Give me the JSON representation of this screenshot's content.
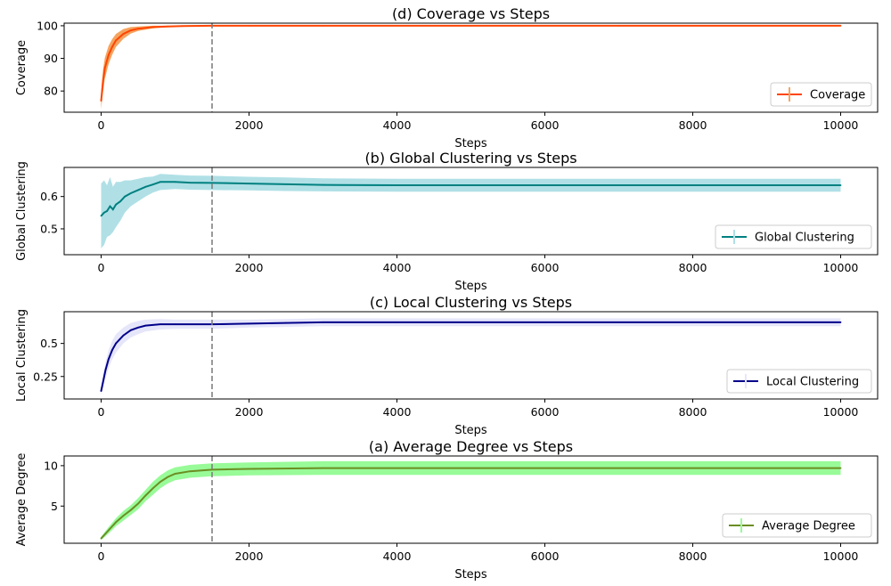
{
  "chart_data": [
    {
      "type": "line",
      "title": "(d) Coverage vs Steps",
      "xlabel": "Steps",
      "ylabel": "Coverage",
      "xlim": [
        -500,
        10500
      ],
      "ylim": [
        73.5,
        100.8
      ],
      "x_ticks": [
        0,
        2000,
        4000,
        6000,
        8000,
        10000
      ],
      "y_ticks": [
        80,
        90,
        100
      ],
      "vline_x": 1500,
      "legend_position": "lower right",
      "series": [
        {
          "name": "Coverage",
          "color": "#ff4500",
          "band_color": "#f4a460",
          "x": [
            0,
            25,
            50,
            100,
            150,
            200,
            300,
            400,
            500,
            700,
            900,
            1100,
            1500,
            2000,
            3000,
            5000,
            7000,
            10000
          ],
          "y": [
            77,
            83,
            87,
            91,
            93.5,
            95.5,
            97.5,
            98.6,
            99.1,
            99.6,
            99.8,
            99.9,
            100,
            100,
            100,
            100,
            100,
            100
          ],
          "err": [
            2.5,
            3.5,
            3.2,
            2.8,
            2.4,
            2,
            1.5,
            1,
            0.7,
            0.4,
            0.2,
            0.1,
            0.05,
            0.05,
            0.05,
            0.05,
            0.05,
            0.05
          ]
        }
      ]
    },
    {
      "type": "line",
      "title": "(b) Global Clustering vs Steps",
      "xlabel": "Steps",
      "ylabel": "Global Clustering",
      "xlim": [
        -500,
        10500
      ],
      "ylim": [
        0.42,
        0.69
      ],
      "x_ticks": [
        0,
        2000,
        4000,
        6000,
        8000,
        10000
      ],
      "y_ticks": [
        0.5,
        0.6
      ],
      "vline_x": 1500,
      "legend_position": "lower right",
      "series": [
        {
          "name": "Global Clustering",
          "color": "#008080",
          "band_color": "#b0e0e6",
          "x": [
            0,
            40,
            80,
            120,
            160,
            200,
            260,
            320,
            400,
            500,
            600,
            700,
            800,
            1000,
            1200,
            1500,
            2000,
            2500,
            3000,
            4000,
            6000,
            8000,
            10000
          ],
          "y": [
            0.54,
            0.55,
            0.555,
            0.57,
            0.56,
            0.575,
            0.585,
            0.6,
            0.61,
            0.62,
            0.63,
            0.637,
            0.645,
            0.645,
            0.643,
            0.642,
            0.64,
            0.638,
            0.636,
            0.635,
            0.635,
            0.635,
            0.635
          ],
          "err": [
            0.1,
            0.1,
            0.08,
            0.09,
            0.07,
            0.07,
            0.06,
            0.05,
            0.04,
            0.035,
            0.03,
            0.025,
            0.025,
            0.022,
            0.022,
            0.022,
            0.021,
            0.021,
            0.02,
            0.02,
            0.02,
            0.02,
            0.02
          ]
        }
      ]
    },
    {
      "type": "line",
      "title": "(c) Local Clustering vs Steps",
      "xlabel": "Steps",
      "ylabel": "Local Clustering",
      "xlim": [
        -500,
        10500
      ],
      "ylim": [
        0.08,
        0.74
      ],
      "x_ticks": [
        0,
        2000,
        4000,
        6000,
        8000,
        10000
      ],
      "y_ticks": [
        0.25,
        0.5
      ],
      "vline_x": 1500,
      "legend_position": "lower right",
      "series": [
        {
          "name": "Local Clustering",
          "color": "#00008b",
          "band_color": "#e6e6fa",
          "x": [
            0,
            30,
            60,
            100,
            150,
            200,
            300,
            400,
            500,
            600,
            800,
            1000,
            1500,
            2000,
            2500,
            3000,
            4000,
            6000,
            8000,
            10000
          ],
          "y": [
            0.14,
            0.22,
            0.3,
            0.38,
            0.45,
            0.5,
            0.56,
            0.6,
            0.62,
            0.635,
            0.645,
            0.645,
            0.645,
            0.65,
            0.655,
            0.66,
            0.66,
            0.66,
            0.66,
            0.66
          ],
          "err": [
            0.03,
            0.05,
            0.06,
            0.07,
            0.07,
            0.07,
            0.06,
            0.055,
            0.05,
            0.045,
            0.04,
            0.035,
            0.035,
            0.03,
            0.03,
            0.03,
            0.03,
            0.03,
            0.03,
            0.03
          ]
        }
      ]
    },
    {
      "type": "line",
      "title": "(a) Average Degree vs Steps",
      "xlabel": "Steps",
      "ylabel": "Average Degree",
      "xlim": [
        -500,
        10500
      ],
      "ylim": [
        0.4,
        11.2
      ],
      "x_ticks": [
        0,
        2000,
        4000,
        6000,
        8000,
        10000
      ],
      "y_ticks": [
        5,
        10
      ],
      "vline_x": 1500,
      "legend_position": "lower right",
      "series": [
        {
          "name": "Average Degree",
          "color": "#6b8e23",
          "band_color": "#98fb98",
          "x": [
            0,
            100,
            200,
            300,
            400,
            500,
            600,
            700,
            800,
            900,
            1000,
            1200,
            1500,
            2000,
            3000,
            4000,
            6000,
            8000,
            10000
          ],
          "y": [
            1,
            2,
            3,
            3.8,
            4.5,
            5.3,
            6.3,
            7.2,
            8,
            8.6,
            9,
            9.3,
            9.5,
            9.6,
            9.7,
            9.7,
            9.7,
            9.7,
            9.7
          ],
          "err": [
            0.2,
            0.4,
            0.5,
            0.6,
            0.6,
            0.7,
            0.7,
            0.8,
            0.8,
            0.8,
            0.8,
            0.8,
            0.8,
            0.8,
            0.85,
            0.85,
            0.85,
            0.85,
            0.85
          ]
        }
      ]
    }
  ]
}
